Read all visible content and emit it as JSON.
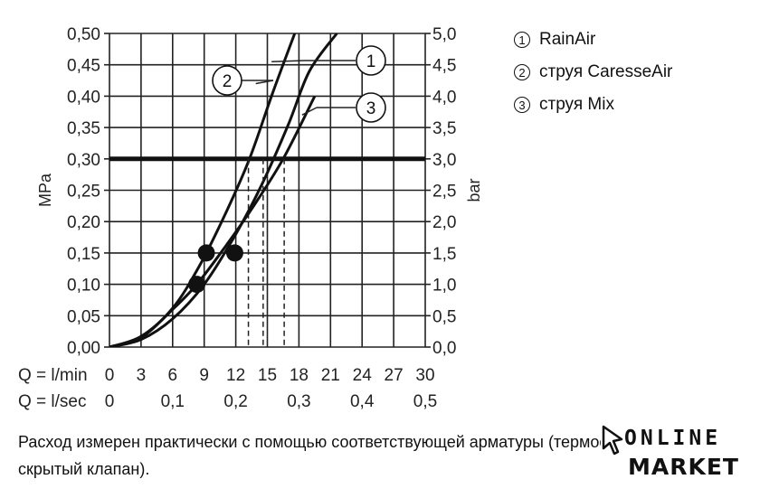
{
  "chart_data": {
    "type": "line",
    "x_rows": [
      {
        "label": "Q = l/min",
        "ticks": [
          "0",
          "3",
          "6",
          "9",
          "12",
          "15",
          "18",
          "21",
          "24",
          "27",
          "30"
        ]
      },
      {
        "label": "Q = l/sec",
        "ticks": [
          "0",
          "0,1",
          "0,2",
          "0,3",
          "0,4",
          "0,5"
        ]
      }
    ],
    "xlim": [
      0,
      30
    ],
    "ylim": [
      0,
      0.5
    ],
    "ylabel_left": "MPa",
    "ylabel_right": "bar",
    "y_ticks_left": [
      "0,00",
      "0,05",
      "0,10",
      "0,15",
      "0,20",
      "0,25",
      "0,30",
      "0,35",
      "0,40",
      "0,45",
      "0,50"
    ],
    "y_ticks_right": [
      "0,0",
      "0,5",
      "1,0",
      "1,5",
      "2,0",
      "2,5",
      "3,0",
      "3,5",
      "4,0",
      "4,5",
      "5,0"
    ],
    "grid": true,
    "reference_line": {
      "y": 0.3
    },
    "series": [
      {
        "name": "RainAir",
        "callout": "1",
        "x": [
          0,
          3,
          6,
          9,
          12,
          14.5,
          17,
          19,
          21.6
        ],
        "y": [
          0,
          0.012,
          0.045,
          0.1,
          0.18,
          0.26,
          0.355,
          0.44,
          0.5
        ],
        "intersect_x": 14.6,
        "marker": {
          "x": 11.9,
          "y": 0.15
        }
      },
      {
        "name": "струя CaresseAir",
        "callout": "2",
        "x": [
          0,
          3,
          6,
          8.5,
          11,
          13.3,
          15.5,
          17.6
        ],
        "y": [
          0,
          0.017,
          0.062,
          0.128,
          0.212,
          0.3,
          0.405,
          0.5
        ],
        "intersect_x": 13.2,
        "marker": {
          "x": 9.2,
          "y": 0.15
        }
      },
      {
        "name": "струя Mix",
        "callout": "3",
        "x": [
          0,
          3,
          6,
          8.3,
          11,
          13.5,
          16.5,
          19.5
        ],
        "y": [
          0,
          0.015,
          0.06,
          0.1,
          0.16,
          0.22,
          0.3,
          0.4
        ],
        "intersect_x": 16.6,
        "marker": {
          "x": 8.3,
          "y": 0.1
        }
      }
    ]
  },
  "legend": [
    {
      "num": "1",
      "label": "RainAir"
    },
    {
      "num": "2",
      "label": "струя CaresseAir"
    },
    {
      "num": "3",
      "label": "струя Mix"
    }
  ],
  "footnote": "Расход измерен практически с помощью соответствующей арматуры (термостат/смеситель/скрытый клапан).",
  "logo": {
    "line1": "ONLINE",
    "line2": "MARKET"
  }
}
